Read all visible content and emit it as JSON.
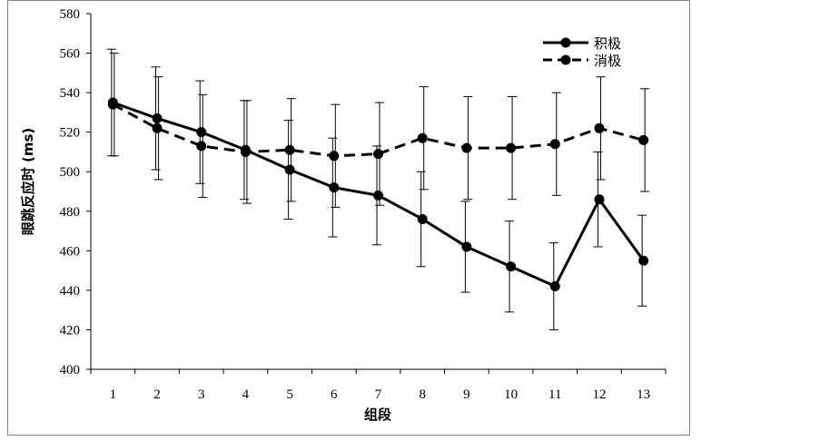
{
  "chart_data": {
    "type": "line",
    "title": "",
    "xlabel": "组段",
    "ylabel": "眼跳反应时 (ms)",
    "x": [
      1,
      2,
      3,
      4,
      5,
      6,
      7,
      8,
      9,
      10,
      11,
      12,
      13
    ],
    "xtick_labels": [
      "1",
      "2",
      "3",
      "4",
      "5",
      "6",
      "7",
      "8",
      "9",
      "10",
      "11",
      "12",
      "13"
    ],
    "ylim": [
      400,
      580
    ],
    "yticks": [
      400,
      420,
      440,
      460,
      480,
      500,
      520,
      540,
      560,
      580
    ],
    "ytick_labels": [
      "400",
      "420",
      "440",
      "460",
      "480",
      "500",
      "520",
      "540",
      "560",
      "580"
    ],
    "grid": false,
    "legend_position": "top-right",
    "series": [
      {
        "name": "积极",
        "line_style": "solid",
        "color": "#000000",
        "values": [
          535,
          527,
          520,
          511,
          501,
          492,
          488,
          476,
          462,
          452,
          442,
          486,
          455
        ],
        "error": [
          27,
          26,
          26,
          25,
          25,
          25,
          25,
          24,
          23,
          23,
          22,
          24,
          23
        ]
      },
      {
        "name": "消极",
        "line_style": "dashed",
        "color": "#000000",
        "values": [
          534,
          522,
          513,
          510,
          511,
          508,
          509,
          517,
          512,
          512,
          514,
          522,
          516
        ],
        "error": [
          26,
          26,
          26,
          26,
          26,
          26,
          26,
          26,
          26,
          26,
          26,
          26,
          26
        ]
      }
    ]
  }
}
